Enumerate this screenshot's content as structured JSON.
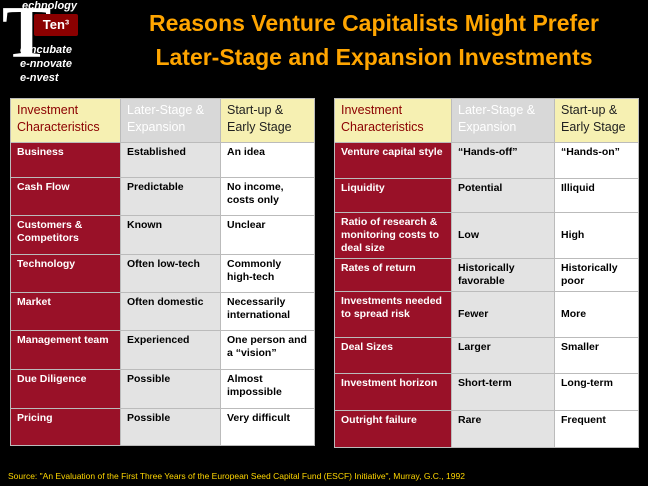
{
  "logo": {
    "letter": "T",
    "top_text": "echnology",
    "badge": "Ten³",
    "lines": [
      "e-ncubate",
      "e-nnovate",
      "e-nvest"
    ]
  },
  "title": {
    "line1": "Reasons Venture Capitalists Might Prefer",
    "line2": "Later-Stage and Expansion Investments"
  },
  "left_table": {
    "headers": [
      "Investment Characteristics",
      "Later-Stage & Expansion",
      "Start-up & Early Stage"
    ],
    "rows": [
      [
        "Business",
        "Established",
        "An idea"
      ],
      [
        "Cash Flow",
        "Predictable",
        "No income, costs only"
      ],
      [
        "Customers & Competitors",
        "Known",
        "Unclear"
      ],
      [
        "Technology",
        "Often low-tech",
        "Commonly high-tech"
      ],
      [
        "Market",
        "Often domestic",
        "Necessarily international"
      ],
      [
        "Management team",
        "Experienced",
        "One person and a “vision”"
      ],
      [
        "Due Diligence",
        "Possible",
        "Almost impossible"
      ],
      [
        "Pricing",
        "Possible",
        "Very difficult"
      ]
    ]
  },
  "right_table": {
    "headers": [
      "Investment Characteristics",
      "Later-Stage & Expansion",
      "Start-up & Early Stage"
    ],
    "rows": [
      [
        "Venture capital style",
        "“Hands-off”",
        "“Hands-on”"
      ],
      [
        "Liquidity",
        "Potential",
        "Illiquid"
      ],
      [
        "Ratio of research & monitoring costs to deal size",
        "Low",
        "High"
      ],
      [
        "Rates of return",
        "Historically favorable",
        "Historically poor"
      ],
      [
        "Investments needed to spread risk",
        "Fewer",
        "More"
      ],
      [
        "Deal Sizes",
        "Larger",
        "Smaller"
      ],
      [
        "Investment horizon",
        "Short-term",
        "Long-term"
      ],
      [
        "Outright failure",
        "Rare",
        "Frequent"
      ]
    ]
  },
  "source": "Source: \"An Evaluation of the First Three Years of the European Seed Capital Fund (ESCF) Initiative\", Murray, G.C., 1992"
}
